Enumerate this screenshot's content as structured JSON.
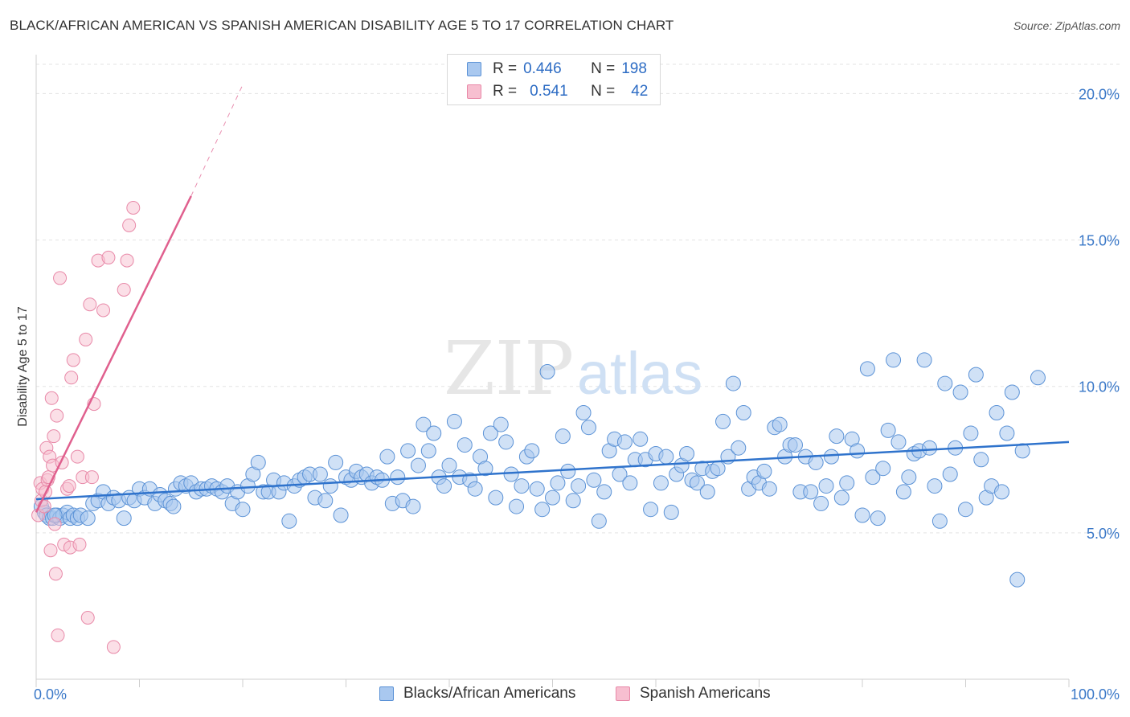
{
  "title": "BLACK/AFRICAN AMERICAN VS SPANISH AMERICAN DISABILITY AGE 5 TO 17 CORRELATION CHART",
  "source": "Source: ZipAtlas.com",
  "watermark": {
    "zip": "ZIP",
    "atlas": "atlas"
  },
  "legend": {
    "series1": {
      "r_label": "R =",
      "r_value": "0.446",
      "n_label": "N =",
      "n_value": "198"
    },
    "series2": {
      "r_label": "R =",
      "r_value": "0.541",
      "n_label": "N =",
      "n_value": "42"
    }
  },
  "bottom_legend": {
    "series1": "Blacks/African Americans",
    "series2": "Spanish Americans"
  },
  "colors": {
    "blue_fill": "#a9c8ef",
    "blue_stroke": "#5b92d6",
    "blue_line": "#2f73cc",
    "pink_fill": "#f7bfd0",
    "pink_stroke": "#e889a8",
    "pink_line": "#e0608e",
    "grid": "#e3e3e3",
    "tick_text": "#3a78c8"
  },
  "chart_data": {
    "type": "scatter",
    "xlabel": "",
    "ylabel": "Disability Age 5 to 17",
    "xlim": [
      0,
      100
    ],
    "ylim": [
      0,
      21
    ],
    "x_tick_labels": [
      "0.0%",
      "100.0%"
    ],
    "y_ticks": [
      5,
      10,
      15,
      20
    ],
    "y_tick_labels": [
      "5.0%",
      "10.0%",
      "15.0%",
      "20.0%"
    ],
    "grid": true,
    "legend_position": "top-center",
    "series": [
      {
        "name": "Blacks/African Americans",
        "r": 0.446,
        "n": 198,
        "trend": {
          "x": [
            0,
            100
          ],
          "y": [
            6.15,
            8.1
          ]
        },
        "points": [
          [
            0.5,
            5.9
          ],
          [
            0.8,
            5.7
          ],
          [
            1,
            5.6
          ],
          [
            1.3,
            5.5
          ],
          [
            1.6,
            5.5
          ],
          [
            2,
            5.6
          ],
          [
            2.3,
            5.5
          ],
          [
            2.6,
            5.6
          ],
          [
            3,
            5.7
          ],
          [
            3.3,
            5.5
          ],
          [
            3.6,
            5.6
          ],
          [
            4,
            5.5
          ],
          [
            4.3,
            5.6
          ],
          [
            5,
            5.5
          ],
          [
            5.5,
            6.0
          ],
          [
            6,
            6.1
          ],
          [
            6.5,
            6.4
          ],
          [
            7,
            6.0
          ],
          [
            7.5,
            6.2
          ],
          [
            8,
            6.1
          ],
          [
            8.5,
            5.5
          ],
          [
            9,
            6.2
          ],
          [
            9.5,
            6.1
          ],
          [
            10,
            6.5
          ],
          [
            10.5,
            6.2
          ],
          [
            11,
            6.5
          ],
          [
            11.5,
            6.0
          ],
          [
            12,
            6.3
          ],
          [
            12.5,
            6.1
          ],
          [
            13,
            6.0
          ],
          [
            13.3,
            5.9
          ],
          [
            13.5,
            6.5
          ],
          [
            14,
            6.7
          ],
          [
            14.5,
            6.6
          ],
          [
            15,
            6.7
          ],
          [
            15.5,
            6.4
          ],
          [
            16,
            6.5
          ],
          [
            16.5,
            6.5
          ],
          [
            17,
            6.6
          ],
          [
            17.5,
            6.5
          ],
          [
            18,
            6.4
          ],
          [
            18.5,
            6.6
          ],
          [
            19,
            6.0
          ],
          [
            19.5,
            6.4
          ],
          [
            20,
            5.8
          ],
          [
            20.5,
            6.6
          ],
          [
            21,
            7.0
          ],
          [
            21.5,
            7.4
          ],
          [
            22,
            6.4
          ],
          [
            22.5,
            6.4
          ],
          [
            23,
            6.8
          ],
          [
            23.5,
            6.4
          ],
          [
            24,
            6.7
          ],
          [
            24.5,
            5.4
          ],
          [
            25,
            6.6
          ],
          [
            25.5,
            6.8
          ],
          [
            26,
            6.9
          ],
          [
            26.5,
            7.0
          ],
          [
            27,
            6.2
          ],
          [
            27.5,
            7.0
          ],
          [
            28,
            6.1
          ],
          [
            28.5,
            6.6
          ],
          [
            29,
            7.4
          ],
          [
            29.5,
            5.6
          ],
          [
            30,
            6.9
          ],
          [
            30.5,
            6.8
          ],
          [
            31,
            7.1
          ],
          [
            31.5,
            6.9
          ],
          [
            32,
            7.0
          ],
          [
            32.5,
            6.7
          ],
          [
            33,
            6.9
          ],
          [
            33.5,
            6.8
          ],
          [
            34,
            7.6
          ],
          [
            34.5,
            6.0
          ],
          [
            35,
            6.9
          ],
          [
            35.5,
            6.1
          ],
          [
            36,
            7.8
          ],
          [
            36.5,
            5.9
          ],
          [
            37,
            7.3
          ],
          [
            37.5,
            8.7
          ],
          [
            38,
            7.8
          ],
          [
            38.5,
            8.4
          ],
          [
            39,
            6.9
          ],
          [
            39.5,
            6.6
          ],
          [
            40,
            7.3
          ],
          [
            40.5,
            8.8
          ],
          [
            41,
            6.9
          ],
          [
            41.5,
            8.0
          ],
          [
            42,
            6.8
          ],
          [
            42.5,
            6.5
          ],
          [
            43,
            7.6
          ],
          [
            43.5,
            7.2
          ],
          [
            44,
            8.4
          ],
          [
            44.5,
            6.2
          ],
          [
            45,
            8.7
          ],
          [
            45.5,
            8.1
          ],
          [
            46,
            7.0
          ],
          [
            46.5,
            5.9
          ],
          [
            47,
            6.6
          ],
          [
            47.5,
            7.6
          ],
          [
            48,
            7.8
          ],
          [
            48.5,
            6.5
          ],
          [
            49,
            5.8
          ],
          [
            49.5,
            10.5
          ],
          [
            50,
            6.2
          ],
          [
            50.5,
            6.7
          ],
          [
            51,
            8.3
          ],
          [
            51.5,
            7.1
          ],
          [
            52,
            6.1
          ],
          [
            52.5,
            6.6
          ],
          [
            53,
            9.1
          ],
          [
            53.5,
            8.6
          ],
          [
            54,
            6.8
          ],
          [
            54.5,
            5.4
          ],
          [
            55,
            6.4
          ],
          [
            55.5,
            7.8
          ],
          [
            56,
            8.2
          ],
          [
            56.5,
            7.0
          ],
          [
            57,
            8.1
          ],
          [
            57.5,
            6.7
          ],
          [
            58,
            7.5
          ],
          [
            58.5,
            8.2
          ],
          [
            59,
            7.5
          ],
          [
            59.5,
            5.8
          ],
          [
            60,
            7.7
          ],
          [
            60.5,
            6.7
          ],
          [
            61,
            7.6
          ],
          [
            61.5,
            5.7
          ],
          [
            62,
            7.0
          ],
          [
            62.5,
            7.3
          ],
          [
            63,
            7.7
          ],
          [
            63.5,
            6.8
          ],
          [
            64,
            6.7
          ],
          [
            64.5,
            7.2
          ],
          [
            65,
            6.4
          ],
          [
            65.5,
            7.1
          ],
          [
            66,
            7.2
          ],
          [
            66.5,
            8.8
          ],
          [
            67,
            7.6
          ],
          [
            67.5,
            10.1
          ],
          [
            68,
            7.9
          ],
          [
            68.5,
            9.1
          ],
          [
            69,
            6.5
          ],
          [
            69.5,
            6.9
          ],
          [
            70,
            6.7
          ],
          [
            70.5,
            7.1
          ],
          [
            71,
            6.5
          ],
          [
            71.5,
            8.6
          ],
          [
            72,
            8.7
          ],
          [
            72.5,
            7.6
          ],
          [
            73,
            8.0
          ],
          [
            73.5,
            8.0
          ],
          [
            74,
            6.4
          ],
          [
            74.5,
            7.6
          ],
          [
            75,
            6.4
          ],
          [
            75.5,
            7.4
          ],
          [
            76,
            6.0
          ],
          [
            76.5,
            6.6
          ],
          [
            77,
            7.6
          ],
          [
            77.5,
            8.3
          ],
          [
            78,
            6.2
          ],
          [
            78.5,
            6.7
          ],
          [
            79,
            8.2
          ],
          [
            79.5,
            7.8
          ],
          [
            80,
            5.6
          ],
          [
            80.5,
            10.6
          ],
          [
            81,
            6.9
          ],
          [
            81.5,
            5.5
          ],
          [
            82,
            7.2
          ],
          [
            82.5,
            8.5
          ],
          [
            83,
            10.9
          ],
          [
            83.5,
            8.1
          ],
          [
            84,
            6.4
          ],
          [
            84.5,
            6.9
          ],
          [
            85,
            7.7
          ],
          [
            85.5,
            7.8
          ],
          [
            86,
            10.9
          ],
          [
            86.5,
            7.9
          ],
          [
            87,
            6.6
          ],
          [
            87.5,
            5.4
          ],
          [
            88,
            10.1
          ],
          [
            88.5,
            7.0
          ],
          [
            89,
            7.9
          ],
          [
            89.5,
            9.8
          ],
          [
            90,
            5.8
          ],
          [
            90.5,
            8.4
          ],
          [
            91,
            10.4
          ],
          [
            91.5,
            7.5
          ],
          [
            92,
            6.2
          ],
          [
            92.5,
            6.6
          ],
          [
            93,
            9.1
          ],
          [
            93.5,
            6.4
          ],
          [
            94,
            8.4
          ],
          [
            94.5,
            9.8
          ],
          [
            95,
            3.4
          ],
          [
            95.5,
            7.8
          ],
          [
            97,
            10.3
          ],
          [
            1.8,
            5.6
          ]
        ]
      },
      {
        "name": "Spanish Americans",
        "r": 0.541,
        "n": 42,
        "trend": {
          "x": [
            0,
            15
          ],
          "y": [
            5.7,
            16.5
          ]
        },
        "trend_dashed": {
          "x": [
            15,
            20
          ],
          "y": [
            16.5,
            20.3
          ]
        },
        "points": [
          [
            0.2,
            5.6
          ],
          [
            0.4,
            6.7
          ],
          [
            0.5,
            6.1
          ],
          [
            0.6,
            6.5
          ],
          [
            0.8,
            5.9
          ],
          [
            0.9,
            6.4
          ],
          [
            1.0,
            7.9
          ],
          [
            1.1,
            6.8
          ],
          [
            1.2,
            6.9
          ],
          [
            1.3,
            7.6
          ],
          [
            1.4,
            4.4
          ],
          [
            1.5,
            9.6
          ],
          [
            1.6,
            7.3
          ],
          [
            1.7,
            8.3
          ],
          [
            1.8,
            5.3
          ],
          [
            1.9,
            3.6
          ],
          [
            2.0,
            9.0
          ],
          [
            2.1,
            1.5
          ],
          [
            2.3,
            13.7
          ],
          [
            2.5,
            7.4
          ],
          [
            2.7,
            4.6
          ],
          [
            3.0,
            6.5
          ],
          [
            3.2,
            6.6
          ],
          [
            3.3,
            4.5
          ],
          [
            3.4,
            10.3
          ],
          [
            3.6,
            10.9
          ],
          [
            4.0,
            7.6
          ],
          [
            4.2,
            4.6
          ],
          [
            4.5,
            6.9
          ],
          [
            4.8,
            11.6
          ],
          [
            5.0,
            2.1
          ],
          [
            5.2,
            12.8
          ],
          [
            5.4,
            6.9
          ],
          [
            5.6,
            9.4
          ],
          [
            6.0,
            14.3
          ],
          [
            6.5,
            12.6
          ],
          [
            7.0,
            14.4
          ],
          [
            7.5,
            1.1
          ],
          [
            8.5,
            13.3
          ],
          [
            8.8,
            14.3
          ],
          [
            9.0,
            15.5
          ],
          [
            9.4,
            16.1
          ]
        ]
      }
    ]
  }
}
